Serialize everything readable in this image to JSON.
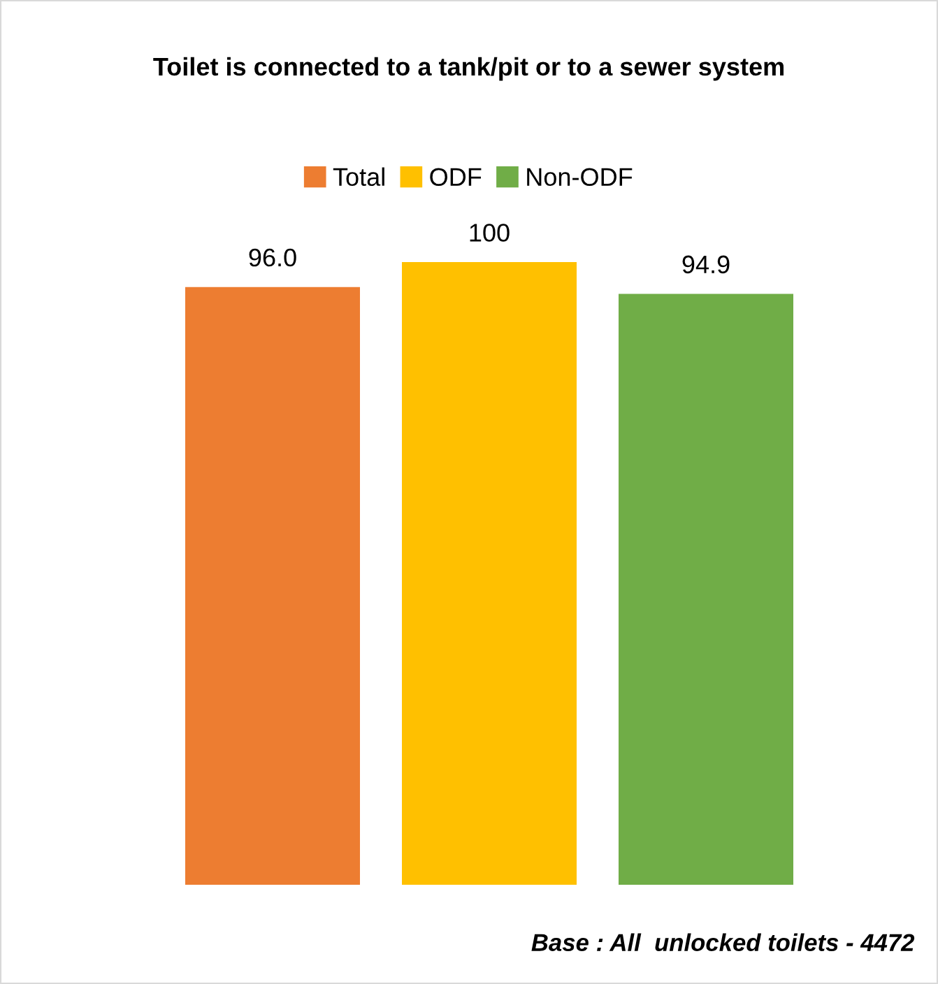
{
  "chart_data": {
    "type": "bar",
    "title": "Toilet is connected to a tank/pit or to a sewer system",
    "categories": [
      null
    ],
    "series": [
      {
        "name": "Total",
        "color": "#ed7d31",
        "values": [
          96.0
        ],
        "value_labels": [
          "96.0"
        ]
      },
      {
        "name": "ODF",
        "color": "#ffc000",
        "values": [
          100
        ],
        "value_labels": [
          "100"
        ]
      },
      {
        "name": "Non-ODF",
        "color": "#70ad47",
        "values": [
          94.9
        ],
        "value_labels": [
          "94.9"
        ]
      }
    ],
    "legend": "top",
    "grid": false,
    "annotations": [
      "Base : All  unlocked toilets - 4472"
    ]
  }
}
